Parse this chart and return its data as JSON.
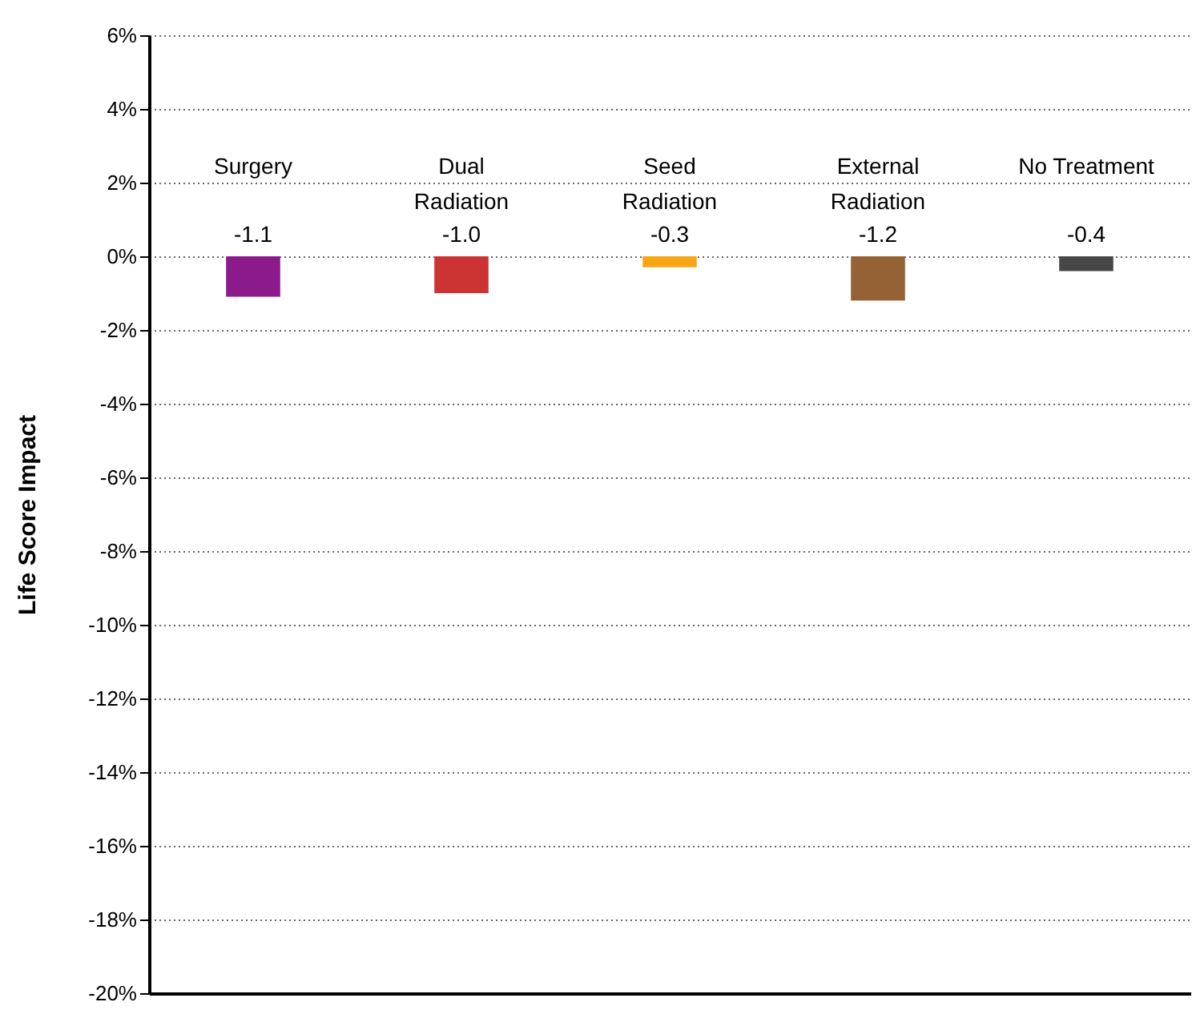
{
  "chart_data": {
    "type": "bar",
    "ylabel": "Life Score Impact",
    "categories": [
      "Surgery",
      "Dual Radiation",
      "Seed Radiation",
      "External Radiation",
      "No Treatment"
    ],
    "values": [
      -1.1,
      -1.0,
      -0.3,
      -1.2,
      -0.4
    ],
    "value_labels": [
      "-1.1",
      "-1.0",
      "-0.3",
      "-1.2",
      "-0.4"
    ],
    "colors": [
      "#8b1a8b",
      "#cc3333",
      "#f5a814",
      "#956235",
      "#474747"
    ],
    "ylim": [
      -20,
      6
    ],
    "yticks": [
      {
        "value": 6,
        "label": "6%"
      },
      {
        "value": 4,
        "label": "4%"
      },
      {
        "value": 2,
        "label": "2%"
      },
      {
        "value": 0,
        "label": "0%"
      },
      {
        "value": -2,
        "label": "-2%"
      },
      {
        "value": -4,
        "label": "-4%"
      },
      {
        "value": -6,
        "label": "-6%"
      },
      {
        "value": -8,
        "label": "-8%"
      },
      {
        "value": -10,
        "label": "-10%"
      },
      {
        "value": -12,
        "label": "-12%"
      },
      {
        "value": -14,
        "label": "-14%"
      },
      {
        "value": -16,
        "label": "-16%"
      },
      {
        "value": -18,
        "label": "-18%"
      },
      {
        "value": -20,
        "label": "-20%"
      }
    ],
    "grid": "y",
    "legend": false
  }
}
